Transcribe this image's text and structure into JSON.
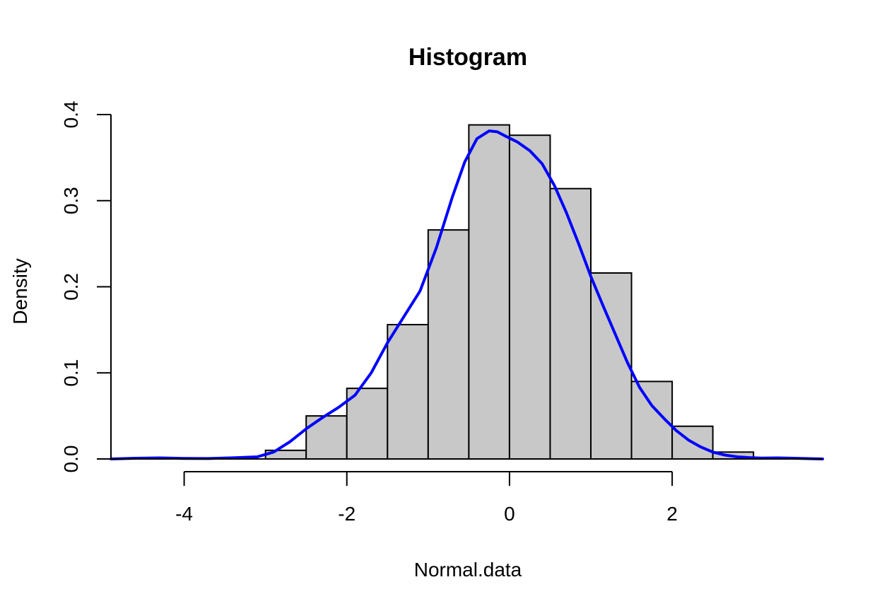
{
  "chart_data": {
    "type": "bar",
    "title": "Histogram",
    "xlabel": "Normal.data",
    "ylabel": "Density",
    "xlim": [
      -4.9,
      3.85
    ],
    "ylim": [
      0,
      0.4
    ],
    "x_ticks": [
      -4,
      -2,
      0,
      2
    ],
    "x_tick_labels": [
      "-4",
      "-2",
      "0",
      "2"
    ],
    "y_ticks": [
      0.0,
      0.1,
      0.2,
      0.3,
      0.4
    ],
    "y_tick_labels": [
      "0.0",
      "0.1",
      "0.2",
      "0.3",
      "0.4"
    ],
    "grid": false,
    "bins": [
      {
        "x0": -3.0,
        "x1": -2.5,
        "density": 0.01
      },
      {
        "x0": -2.5,
        "x1": -2.0,
        "density": 0.05
      },
      {
        "x0": -2.0,
        "x1": -1.5,
        "density": 0.082
      },
      {
        "x0": -1.5,
        "x1": -1.0,
        "density": 0.156
      },
      {
        "x0": -1.0,
        "x1": -0.5,
        "density": 0.266
      },
      {
        "x0": -0.5,
        "x1": 0.0,
        "density": 0.388
      },
      {
        "x0": 0.0,
        "x1": 0.5,
        "density": 0.376
      },
      {
        "x0": 0.5,
        "x1": 1.0,
        "density": 0.314
      },
      {
        "x0": 1.0,
        "x1": 1.5,
        "density": 0.216
      },
      {
        "x0": 1.5,
        "x1": 2.0,
        "density": 0.09
      },
      {
        "x0": 2.0,
        "x1": 2.5,
        "density": 0.038
      },
      {
        "x0": 2.5,
        "x1": 3.0,
        "density": 0.008
      }
    ],
    "series": [
      {
        "type": "line",
        "x": [
          -4.9,
          -4.6,
          -4.3,
          -4.0,
          -3.7,
          -3.4,
          -3.1,
          -2.9,
          -2.7,
          -2.5,
          -2.3,
          -2.1,
          -1.9,
          -1.7,
          -1.5,
          -1.3,
          -1.1,
          -0.9,
          -0.7,
          -0.55,
          -0.4,
          -0.25,
          -0.15,
          -0.05,
          0.1,
          0.25,
          0.4,
          0.55,
          0.7,
          0.85,
          1.0,
          1.15,
          1.3,
          1.45,
          1.6,
          1.75,
          1.9,
          2.05,
          2.2,
          2.35,
          2.5,
          2.65,
          2.8,
          2.95,
          3.1,
          3.3,
          3.5,
          3.85
        ],
        "y": [
          0.0,
          0.0008,
          0.0012,
          0.0006,
          0.0005,
          0.0013,
          0.0025,
          0.008,
          0.02,
          0.035,
          0.048,
          0.06,
          0.074,
          0.1,
          0.135,
          0.165,
          0.195,
          0.245,
          0.305,
          0.345,
          0.372,
          0.381,
          0.38,
          0.375,
          0.368,
          0.358,
          0.343,
          0.318,
          0.286,
          0.25,
          0.212,
          0.178,
          0.145,
          0.112,
          0.083,
          0.062,
          0.047,
          0.033,
          0.022,
          0.014,
          0.008,
          0.0045,
          0.0025,
          0.0015,
          0.001,
          0.0012,
          0.0008,
          0.0
        ]
      }
    ]
  },
  "colors": {
    "bar_fill": "#c8c8c8",
    "bar_stroke": "#000000",
    "density_line": "#0000ff",
    "axis": "#000000"
  }
}
